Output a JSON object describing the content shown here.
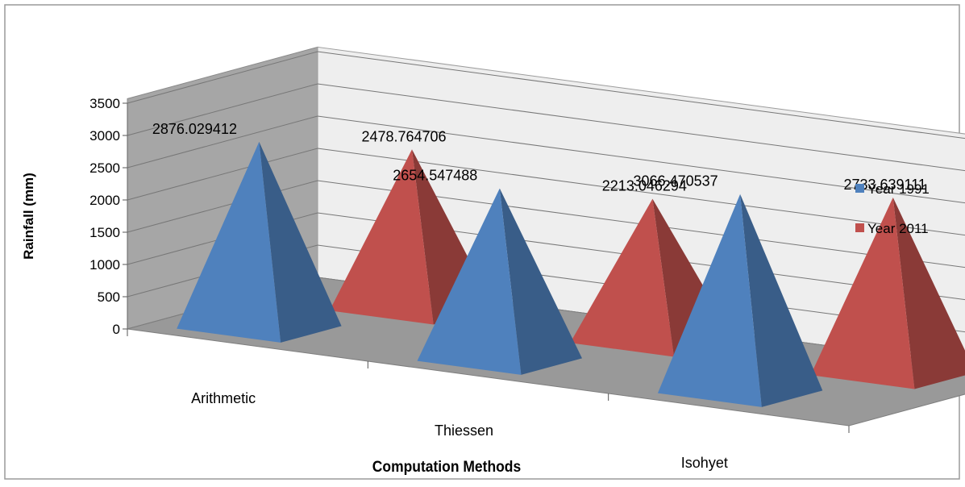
{
  "chart_data": {
    "type": "bar",
    "style": "3d-pyramid",
    "categories": [
      "Arithmetic",
      "Thiessen",
      "Isohyet"
    ],
    "series": [
      {
        "name": "Year 1991",
        "values": [
          2876.029412,
          2654.547488,
          3066.470537
        ],
        "labels": [
          "2876.029412",
          "2654.547488",
          "3066.470537"
        ],
        "color": "#4f81bd"
      },
      {
        "name": "Year 2011",
        "values": [
          2478.764706,
          2213.046294,
          2733.639111
        ],
        "labels": [
          "2478.764706",
          "2213.046294",
          "2733.639111"
        ],
        "color": "#c0504d"
      }
    ],
    "xlabel": "Computation Methods",
    "ylabel": "Rainfall (mm)",
    "ylim": [
      0,
      3500
    ],
    "yticks": [
      "0",
      "500",
      "1000",
      "1500",
      "2000",
      "2500",
      "3000",
      "3500"
    ],
    "grid": true,
    "legend": "right"
  }
}
